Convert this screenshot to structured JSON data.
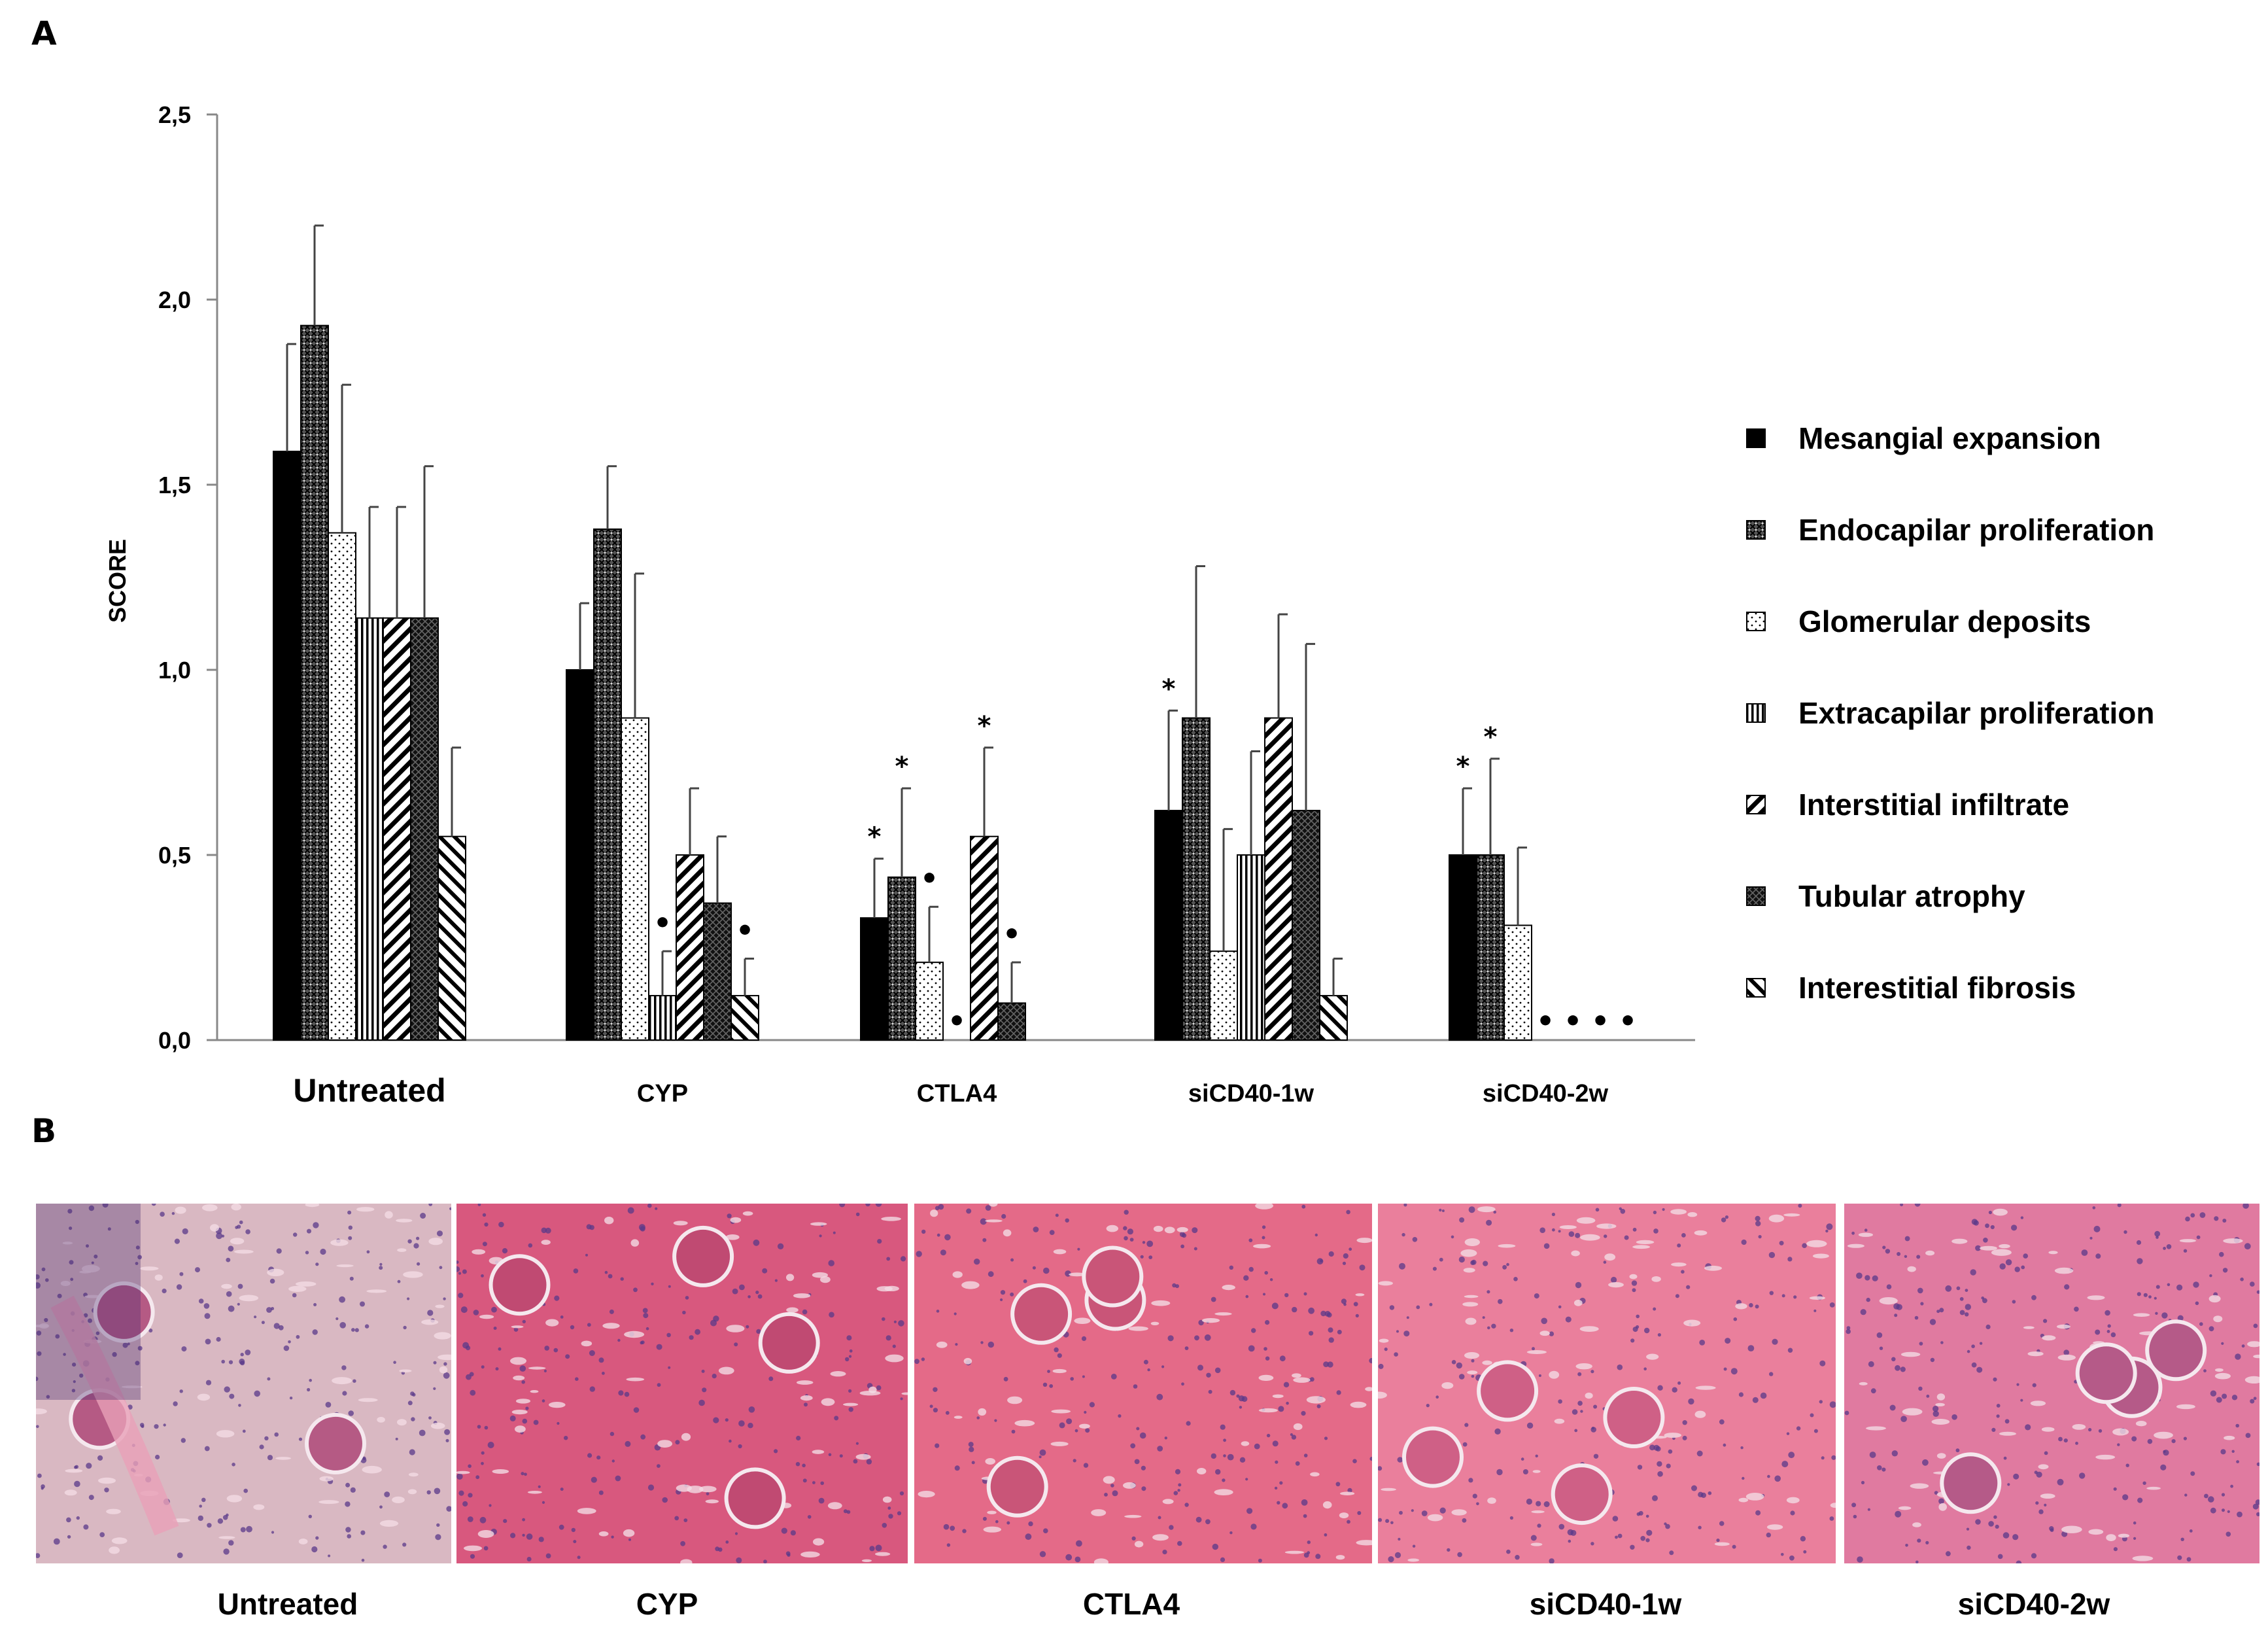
{
  "panel_labels": {
    "a": "A",
    "b": "B"
  },
  "chart_data": {
    "type": "bar",
    "ylabel": "SCORE",
    "ylim": [
      0,
      2.5
    ],
    "yticks": [
      "0,0",
      "0,5",
      "1,0",
      "1,5",
      "2,0",
      "2,5"
    ],
    "ytick_values": [
      0,
      0.5,
      1.0,
      1.5,
      2.0,
      2.5
    ],
    "categories": [
      "Untreated",
      "CYP",
      "CTLA4",
      "siCD40-1w",
      "siCD40-2w"
    ],
    "legend_position": "right",
    "grid": false,
    "series": [
      {
        "name": "Mesangial expansion",
        "pattern": "solid",
        "values": [
          1.59,
          1.0,
          0.33,
          0.62,
          0.5
        ],
        "errors": [
          0.29,
          0.18,
          0.16,
          0.27,
          0.18
        ],
        "marks": [
          "",
          "",
          "*",
          "*",
          "*"
        ]
      },
      {
        "name": "Endocapilar proliferation",
        "pattern": "crosshatch",
        "values": [
          1.93,
          1.38,
          0.44,
          0.87,
          0.5
        ],
        "errors": [
          0.27,
          0.17,
          0.24,
          0.41,
          0.26
        ],
        "marks": [
          "",
          "",
          "*",
          "",
          "*"
        ]
      },
      {
        "name": "Glomerular deposits",
        "pattern": "dots",
        "values": [
          1.37,
          0.87,
          0.21,
          0.24,
          0.31
        ],
        "errors": [
          0.4,
          0.39,
          0.15,
          0.33,
          0.21
        ],
        "marks": [
          "",
          "",
          "•",
          "",
          ""
        ]
      },
      {
        "name": "Extracapilar proliferation",
        "pattern": "vertical",
        "values": [
          1.14,
          0.12,
          0.0,
          0.5,
          0.0
        ],
        "errors": [
          0.3,
          0.12,
          0.0,
          0.28,
          0.0
        ],
        "marks": [
          "",
          "•",
          "•",
          "",
          "•"
        ]
      },
      {
        "name": "Interstitial infiltrate",
        "pattern": "diagonal",
        "values": [
          1.14,
          0.5,
          0.55,
          0.87,
          0.0
        ],
        "errors": [
          0.3,
          0.18,
          0.24,
          0.28,
          0.0
        ],
        "marks": [
          "",
          "",
          "*",
          "",
          "•"
        ]
      },
      {
        "name": "Tubular atrophy",
        "pattern": "darkcheck",
        "values": [
          1.14,
          0.37,
          0.1,
          0.62,
          0.0
        ],
        "errors": [
          0.41,
          0.18,
          0.11,
          0.45,
          0.0
        ],
        "marks": [
          "",
          "",
          "•",
          "",
          "•"
        ]
      },
      {
        "name": "Interestitial fibrosis",
        "pattern": "backdiagonal",
        "values": [
          0.55,
          0.12,
          0.0,
          0.12,
          0.0
        ],
        "errors": [
          0.24,
          0.1,
          0.0,
          0.1,
          0.0
        ],
        "marks": [
          "",
          "•",
          "",
          "",
          "•"
        ]
      }
    ]
  },
  "photos": {
    "captions": [
      "Untreated",
      "CYP",
      "CTLA4",
      "siCD40-1w",
      "siCD40-2w"
    ]
  }
}
